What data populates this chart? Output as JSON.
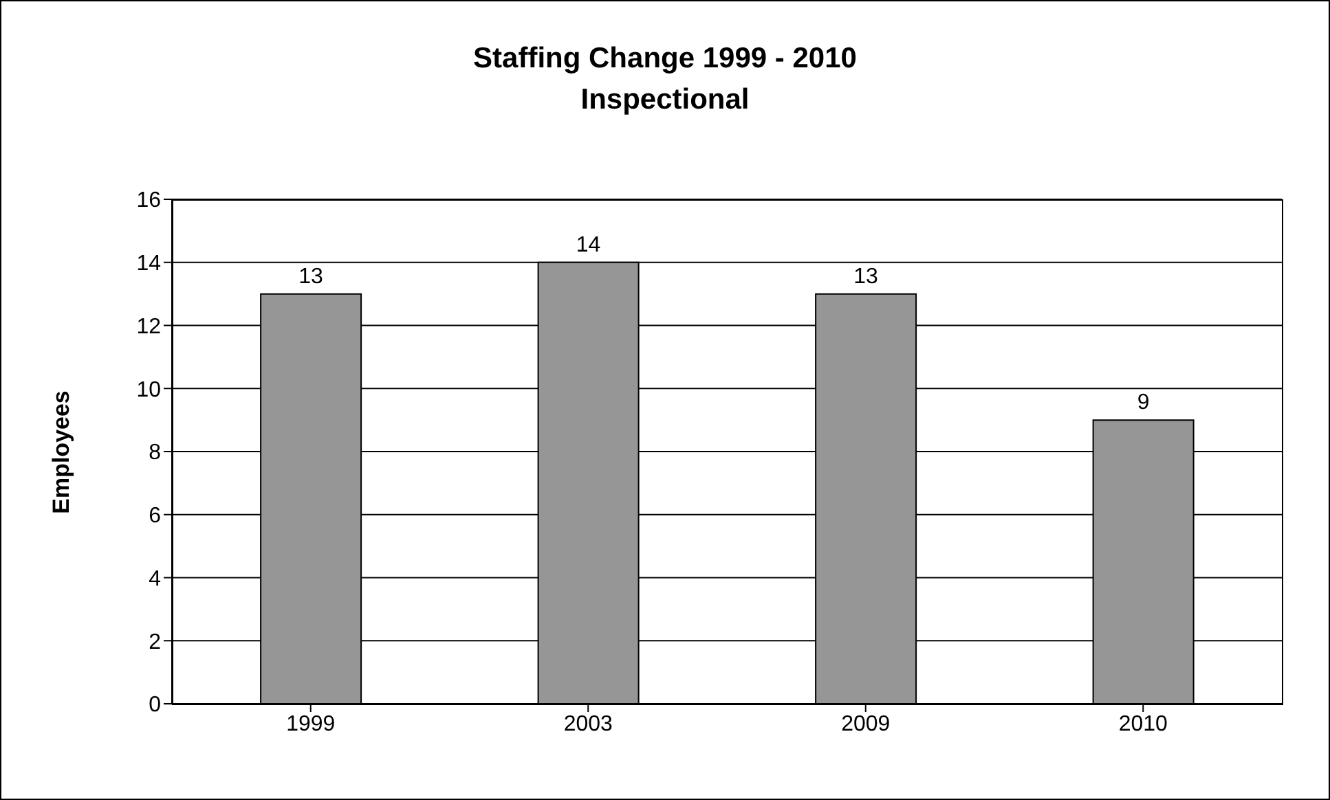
{
  "chart_data": {
    "type": "bar",
    "title": "Staffing Change 1999 - 2010",
    "subtitle": "Inspectional",
    "ylabel": "Employees",
    "categories": [
      "1999",
      "2003",
      "2009",
      "2010"
    ],
    "values": [
      13,
      14,
      13,
      9
    ],
    "color": "#969696",
    "ylim": [
      0,
      16
    ],
    "yticks": [
      0,
      2,
      4,
      6,
      8,
      10,
      12,
      14,
      16
    ],
    "grid": "y",
    "data_labels": true
  }
}
